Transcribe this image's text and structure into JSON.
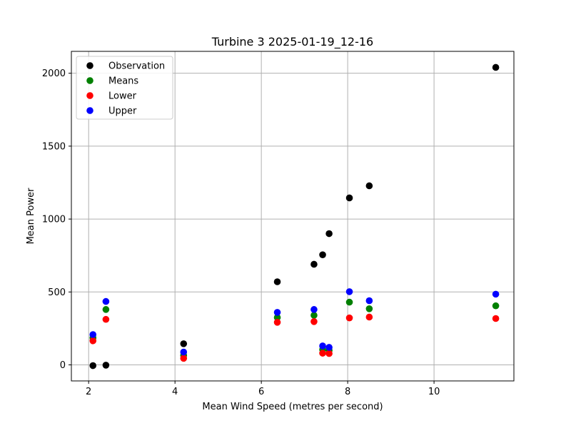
{
  "chart_data": {
    "type": "scatter",
    "title": "Turbine 3 2025-01-19_12-16",
    "xlabel": "Mean Wind Speed (metres per second)",
    "ylabel": "Mean Power",
    "xlim": [
      1.6,
      11.85
    ],
    "ylim": [
      -110,
      2150
    ],
    "xticks": [
      2,
      4,
      6,
      8,
      10
    ],
    "yticks": [
      0,
      500,
      1000,
      1500,
      2000
    ],
    "grid": true,
    "legend": "upper-left",
    "series": [
      {
        "name": "Observation",
        "color": "#000000",
        "x": [
          2.1,
          2.4,
          4.2,
          6.37,
          7.22,
          7.42,
          7.57,
          8.04,
          8.5,
          11.43
        ],
        "y": [
          -5,
          -2,
          145,
          570,
          690,
          755,
          900,
          1145,
          1228,
          2040
        ]
      },
      {
        "name": "Means",
        "color": "#008000",
        "x": [
          2.1,
          2.4,
          4.2,
          6.37,
          7.22,
          7.42,
          7.57,
          8.04,
          8.5,
          11.43
        ],
        "y": [
          185,
          380,
          65,
          325,
          340,
          105,
          100,
          430,
          385,
          405
        ]
      },
      {
        "name": "Lower",
        "color": "#ff0000",
        "x": [
          2.1,
          2.4,
          4.2,
          6.37,
          7.22,
          7.42,
          7.57,
          8.04,
          8.5,
          11.43
        ],
        "y": [
          165,
          312,
          45,
          292,
          297,
          80,
          78,
          322,
          328,
          318
        ]
      },
      {
        "name": "Upper",
        "color": "#0000ff",
        "x": [
          2.1,
          2.4,
          4.2,
          6.37,
          7.22,
          7.42,
          7.57,
          8.04,
          8.5,
          11.43
        ],
        "y": [
          208,
          435,
          88,
          360,
          380,
          130,
          120,
          502,
          440,
          485
        ]
      }
    ]
  }
}
